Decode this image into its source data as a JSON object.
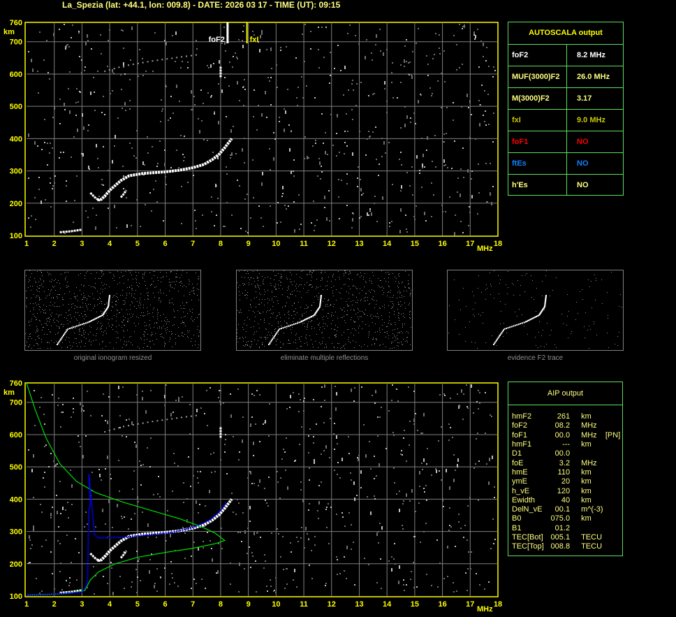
{
  "title": "La_Spezia (lat: +44.1, lon: 009.8) - DATE: 2026 03 17 - TIME (UT): 09:15",
  "colors": {
    "axis": "#ffff00",
    "grid": "#808080",
    "trace": "#ffffff",
    "profile": "#00e000",
    "aip_trace": "#0000ff",
    "panel_border": "#60e060"
  },
  "axes": {
    "x_unit": "MHz",
    "y_unit": "km",
    "x_ticks": [
      1,
      2,
      3,
      4,
      5,
      6,
      7,
      8,
      9,
      10,
      11,
      12,
      13,
      14,
      15,
      16,
      17,
      18
    ],
    "y_ticks": [
      100,
      200,
      300,
      400,
      500,
      600,
      700,
      760
    ],
    "xlim": [
      1,
      18
    ],
    "ylim": [
      100,
      760
    ]
  },
  "markers": {
    "foF2": {
      "label": "foF2",
      "freq": 8.2
    },
    "fxI": {
      "label": "fxI",
      "freq": 9.0
    }
  },
  "trace": {
    "f2_main": [
      [
        3.55,
        210
      ],
      [
        3.7,
        212
      ],
      [
        3.85,
        225
      ],
      [
        4.0,
        240
      ],
      [
        4.2,
        255
      ],
      [
        4.4,
        270
      ],
      [
        4.7,
        285
      ],
      [
        5.2,
        292
      ],
      [
        6.0,
        297
      ],
      [
        6.5,
        302
      ],
      [
        7.0,
        310
      ],
      [
        7.4,
        320
      ],
      [
        7.7,
        335
      ],
      [
        7.95,
        352
      ],
      [
        8.15,
        372
      ],
      [
        8.4,
        400
      ]
    ],
    "f2_branch": [
      [
        3.3,
        232
      ],
      [
        3.5,
        215
      ],
      [
        3.65,
        208
      ]
    ],
    "f2_lower": [
      [
        4.4,
        218
      ],
      [
        4.5,
        228
      ],
      [
        4.6,
        240
      ]
    ],
    "e_trace": [
      [
        2.2,
        110
      ],
      [
        2.6,
        113
      ],
      [
        3.0,
        118
      ]
    ],
    "fof2_spike": [
      [
        8.0,
        590
      ],
      [
        8.0,
        625
      ]
    ],
    "upper_arc": [
      [
        3.8,
        608
      ],
      [
        4.5,
        625
      ],
      [
        5.5,
        640
      ],
      [
        6.5,
        652
      ],
      [
        7.2,
        660
      ]
    ]
  },
  "profile": [
    [
      1,
      760
    ],
    [
      1.3,
      680
    ],
    [
      1.7,
      590
    ],
    [
      2.2,
      510
    ],
    [
      2.8,
      455
    ],
    [
      3.5,
      420
    ],
    [
      4.5,
      390
    ],
    [
      5.5,
      365
    ],
    [
      6.5,
      340
    ],
    [
      7.3,
      315
    ],
    [
      7.8,
      295
    ],
    [
      8.15,
      272
    ],
    [
      7.8,
      262
    ],
    [
      7,
      248
    ],
    [
      6,
      235
    ],
    [
      5,
      220
    ],
    [
      4.2,
      200
    ],
    [
      3.6,
      175
    ],
    [
      3.3,
      150
    ],
    [
      3.15,
      125
    ],
    [
      3.1,
      117
    ],
    [
      2.5,
      108
    ],
    [
      1.5,
      104
    ],
    [
      1,
      103
    ]
  ],
  "aip_blue": [
    [
      1,
      103
    ],
    [
      2,
      106
    ],
    [
      3,
      112
    ],
    [
      3.15,
      130
    ],
    [
      3.2,
      150
    ],
    [
      3.25,
      370
    ],
    [
      3.3,
      380
    ],
    [
      3.25,
      477
    ],
    [
      3.45,
      290
    ],
    [
      3.6,
      280
    ],
    [
      4.5,
      282
    ],
    [
      5.5,
      290
    ],
    [
      6.3,
      298
    ],
    [
      7,
      312
    ],
    [
      7.6,
      335
    ],
    [
      8.0,
      365
    ],
    [
      8.2,
      390
    ]
  ],
  "autoscala": {
    "header": "AUTOSCALA output",
    "rows": [
      {
        "key": "foF2",
        "value": "8.2 MHz",
        "color": "#ffffff"
      },
      {
        "key": "MUF(3000)F2",
        "value": "26.0 MHz",
        "color": "#ffff80"
      },
      {
        "key": "M(3000)F2",
        "value": "3.17",
        "color": "#ffff80"
      },
      {
        "key": "fxI",
        "value": "9.0 MHz",
        "color": "#c8c800"
      },
      {
        "key": "foF1",
        "value": "NO",
        "color": "#ff0000"
      },
      {
        "key": "ftEs",
        "value": "NO",
        "color": "#1080ff"
      },
      {
        "key": "h'Es",
        "value": "NO",
        "color": "#ffff80"
      }
    ]
  },
  "aip": {
    "header": "AIP output",
    "rows": [
      [
        "hmF2",
        "261",
        "km",
        ""
      ],
      [
        "foF2",
        "08.2",
        "MHz",
        ""
      ],
      [
        "foF1",
        "00.0",
        "MHz",
        "[PN]"
      ],
      [
        "hmF1",
        "---",
        "km",
        ""
      ],
      [
        "D1",
        "00.0",
        "",
        ""
      ],
      [
        "foE",
        "3.2",
        "MHz",
        ""
      ],
      [
        "hmE",
        "110",
        "km",
        ""
      ],
      [
        "ymE",
        "20",
        "km",
        ""
      ],
      [
        "h_vE",
        "120",
        "km",
        ""
      ],
      [
        "Ewidth",
        "40",
        "km",
        ""
      ],
      [
        "DelN_vE",
        "00.1",
        "m^(-3)",
        ""
      ],
      [
        "B0",
        "075.0",
        "km",
        ""
      ],
      [
        "B1",
        "01.2",
        "",
        ""
      ],
      [
        "TEC[Bot]",
        "005.1",
        "TECU",
        ""
      ],
      [
        "TEC[Top]",
        "008.8",
        "TECU",
        ""
      ]
    ]
  },
  "thumbnails": [
    {
      "caption": "original ionogram resized"
    },
    {
      "caption": "eliminate multiple reflections"
    },
    {
      "caption": "evidence F2 trace"
    }
  ]
}
